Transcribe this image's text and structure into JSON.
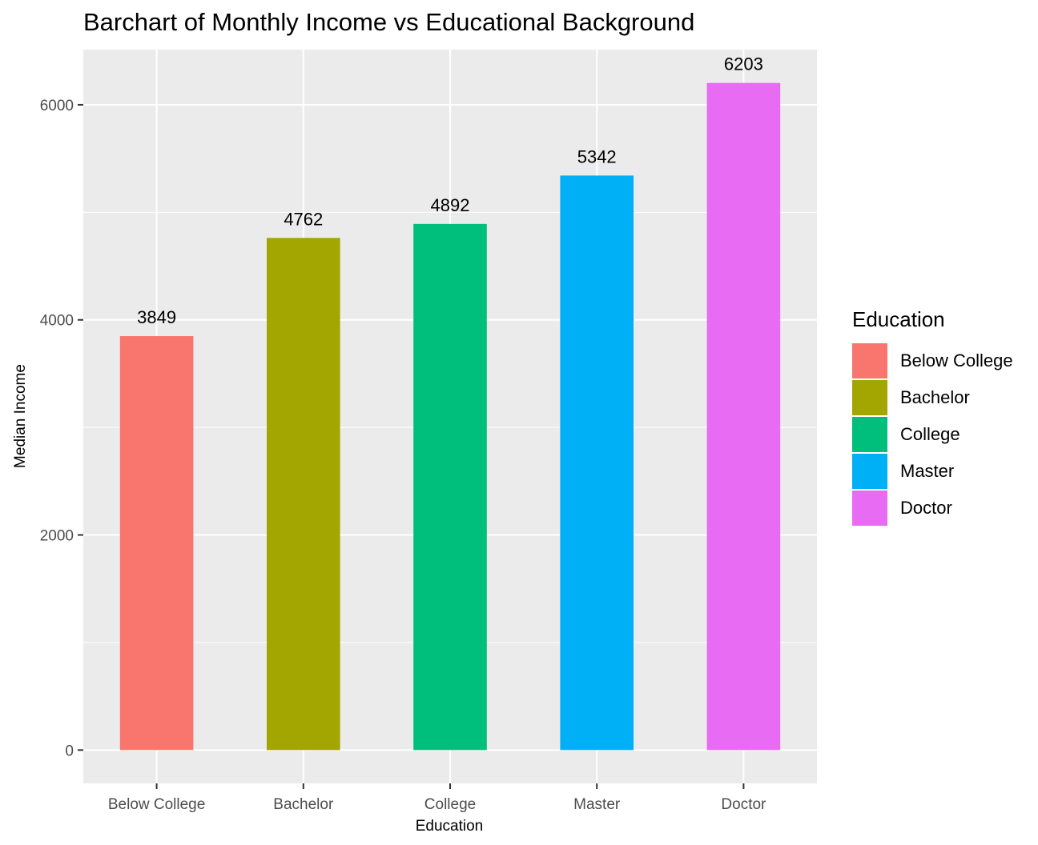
{
  "chart_data": {
    "type": "bar",
    "title": "Barchart of Monthly Income vs Educational Background",
    "xlabel": "Education",
    "ylabel": "Median Income",
    "categories": [
      "Below College",
      "Bachelor",
      "College",
      "Master",
      "Doctor"
    ],
    "values": [
      3849,
      4762,
      4892,
      5342,
      6203
    ],
    "data_labels": [
      "3849",
      "4762",
      "4892",
      "5342",
      "6203"
    ],
    "colors": [
      "#F8766D",
      "#A3A500",
      "#00BF7D",
      "#00B0F6",
      "#E76BF3"
    ],
    "ylim": [
      -310,
      6513
    ],
    "yticks": [
      0,
      2000,
      4000,
      6000
    ],
    "ytick_labels": [
      "0",
      "2000",
      "4000",
      "6000"
    ],
    "grid": true,
    "legend": {
      "title": "Education",
      "position": "right",
      "items": [
        "Below College",
        "Bachelor",
        "College",
        "Master",
        "Doctor"
      ]
    }
  }
}
